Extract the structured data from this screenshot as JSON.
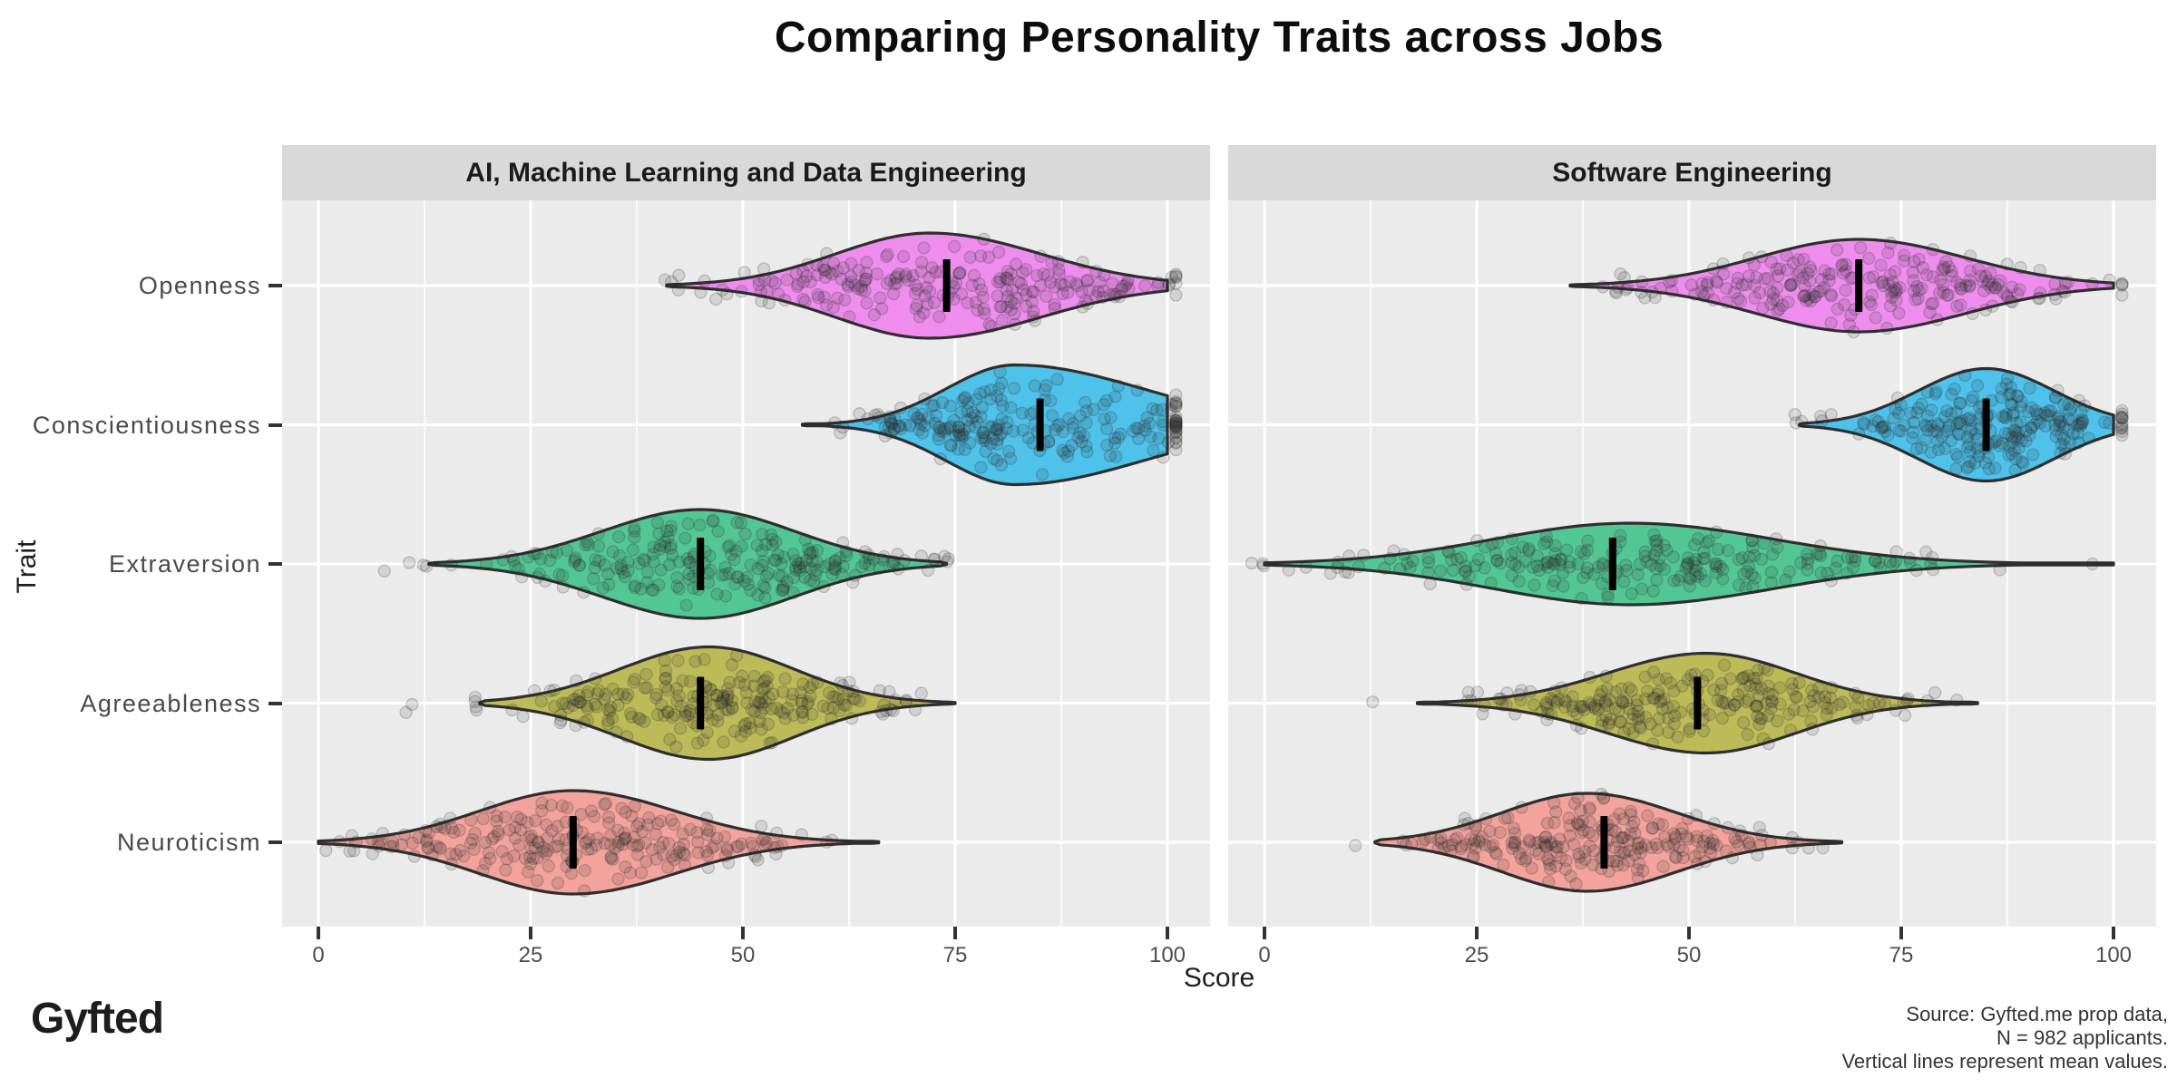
{
  "title": "Comparing Personality Traits across Jobs",
  "chart_data": {
    "type": "violin",
    "orientation": "horizontal",
    "title": "Comparing Personality Traits across Jobs",
    "xlabel": "Score",
    "ylabel": "Trait",
    "xlim": [
      0,
      100
    ],
    "x_ticks": [
      0,
      25,
      50,
      75,
      100
    ],
    "grid": "on",
    "legend": "none",
    "categories": [
      "Openness",
      "Conscientiousness",
      "Extraversion",
      "Agreeableness",
      "Neuroticism"
    ],
    "facets": [
      {
        "label": "AI, Machine Learning and Data Engineering",
        "violins": [
          {
            "trait": "Openness",
            "color": "#EE8DEE",
            "mean": 74,
            "min": 41,
            "max": 100,
            "mode": 72,
            "sd_left": 11,
            "sd_right": 13,
            "half_height": 58
          },
          {
            "trait": "Conscientiousness",
            "color": "#4EC2EA",
            "mean": 85,
            "min": 57,
            "max": 100,
            "mode": 82,
            "sd_left": 8,
            "sd_right": 15,
            "half_height": 66
          },
          {
            "trait": "Extraversion",
            "color": "#52C794",
            "mean": 45,
            "min": 13,
            "max": 74,
            "mode": 45,
            "sd_left": 11.5,
            "sd_right": 11,
            "half_height": 60
          },
          {
            "trait": "Agreeableness",
            "color": "#BDBB58",
            "mean": 45,
            "min": 19,
            "max": 75,
            "mode": 46,
            "sd_left": 10.5,
            "sd_right": 10,
            "half_height": 62
          },
          {
            "trait": "Neuroticism",
            "color": "#F3A29C",
            "mean": 30,
            "min": 0,
            "max": 66,
            "mode": 30,
            "sd_left": 11,
            "sd_right": 12,
            "half_height": 57
          }
        ]
      },
      {
        "label": "Software Engineering",
        "violins": [
          {
            "trait": "Openness",
            "color": "#EE8DEE",
            "mean": 70,
            "min": 36,
            "max": 100,
            "mode": 70,
            "sd_left": 12,
            "sd_right": 12.5,
            "half_height": 51
          },
          {
            "trait": "Conscientiousness",
            "color": "#4EC2EA",
            "mean": 85,
            "min": 63,
            "max": 100,
            "mode": 85,
            "sd_left": 8,
            "sd_right": 8,
            "half_height": 62
          },
          {
            "trait": "Extraversion",
            "color": "#52C794",
            "mean": 41,
            "min": 0,
            "max": 100,
            "mode": 43,
            "sd_left": 16,
            "sd_right": 17,
            "half_height": 45
          },
          {
            "trait": "Agreeableness",
            "color": "#BDBB58",
            "mean": 51,
            "min": 18,
            "max": 84,
            "mode": 52,
            "sd_left": 11.5,
            "sd_right": 10.5,
            "half_height": 55
          },
          {
            "trait": "Neuroticism",
            "color": "#F3A29C",
            "mean": 40,
            "min": 13,
            "max": 68,
            "mode": 38,
            "sd_left": 10,
            "sd_right": 10.5,
            "half_height": 54
          }
        ]
      }
    ],
    "annotation": "Vertical lines represent mean values."
  },
  "colors": {
    "panel_bg": "#EBEBEB",
    "strip_bg": "#D9D9D9",
    "grid": "#FFFFFF",
    "violin_outline": "#2E2E2E",
    "mean_line": "#000000",
    "jitter_point": "rgba(45,45,45,0.13)",
    "jitter_point_stroke": "rgba(35,35,35,0.22)",
    "axis_text": "#4D4D4D",
    "title_text": "#0D0D0D"
  },
  "footer": {
    "logo": "Gyfted",
    "source_lines": [
      "Source: Gyfted.me prop data,",
      "N = 982 applicants.",
      "Vertical lines represent mean values."
    ]
  }
}
